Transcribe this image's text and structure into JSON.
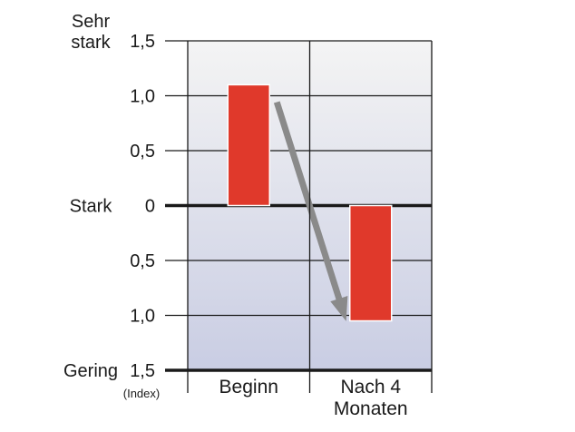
{
  "chart_data": {
    "type": "bar",
    "categories": [
      "Beginn",
      "Nach 4 Monaten"
    ],
    "category_label_lines": [
      [
        "Beginn"
      ],
      [
        "Nach 4",
        "Monaten"
      ]
    ],
    "values": [
      1.1,
      -1.05
    ],
    "ylim": [
      -1.5,
      1.5
    ],
    "y_ticks": [
      {
        "value": 1.5,
        "label": "1,5"
      },
      {
        "value": 1.0,
        "label": "1,0"
      },
      {
        "value": 0.5,
        "label": "0,5"
      },
      {
        "value": 0,
        "label": "0"
      },
      {
        "value": -0.5,
        "label": "0,5"
      },
      {
        "value": -1.0,
        "label": "1,0"
      },
      {
        "value": -1.5,
        "label": "1,5"
      }
    ],
    "y_category_labels": [
      {
        "value": 1.5,
        "lines": [
          "Sehr",
          "stark"
        ]
      },
      {
        "value": 0,
        "lines": [
          "Stark"
        ]
      },
      {
        "value": -1.5,
        "lines": [
          "Gering"
        ]
      }
    ],
    "y_unit_note": "(Index)",
    "grid": true,
    "colors": {
      "bar": "#e0392b",
      "arrow": "#8a8a8a",
      "bg_top": "#f4f4f4",
      "bg_bottom": "#c9cde3",
      "grid": "#1a1a1a"
    },
    "annotation": {
      "type": "arrow",
      "from": {
        "category": 0,
        "value": 1.0
      },
      "to": {
        "category": 1,
        "value": -0.95
      }
    }
  }
}
